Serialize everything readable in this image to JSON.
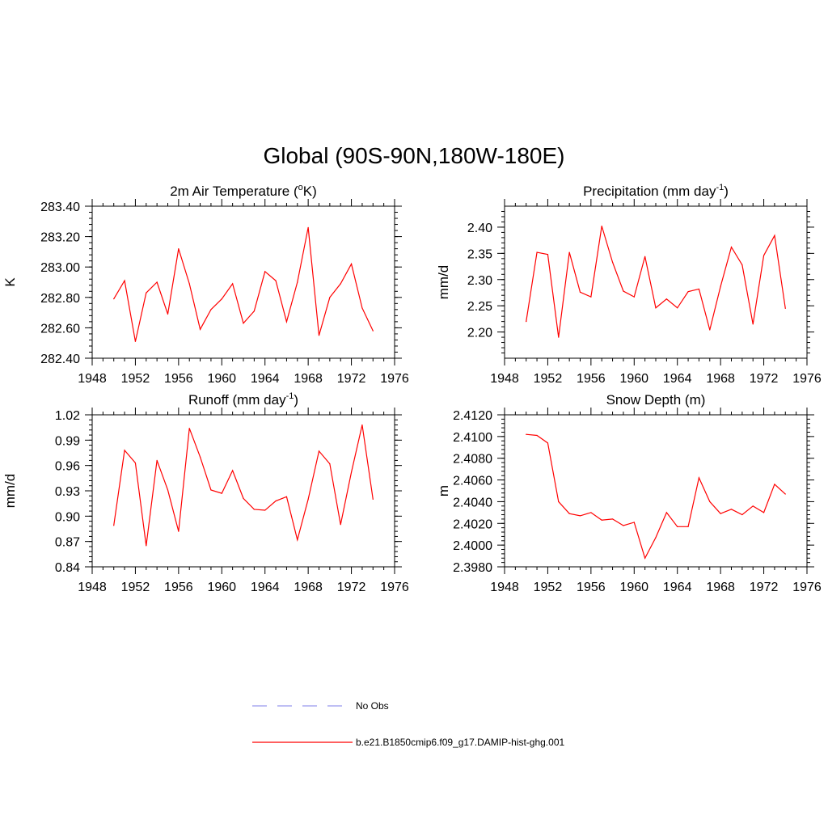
{
  "figure": {
    "title": "Global (90S-90N,180W-180E)",
    "colors": {
      "series": "#ff0000",
      "obs": "#9999ee",
      "axis": "#000000"
    }
  },
  "legend": {
    "entries": [
      {
        "label": "No Obs",
        "style": "dashed",
        "color": "#9999ee"
      },
      {
        "label": "b.e21.B1850cmip6.f09_g17.DAMIP-hist-ghg.001",
        "style": "solid",
        "color": "#ff0000"
      }
    ]
  },
  "chart_data": [
    {
      "type": "line",
      "title": "2m Air Temperature (",
      "title_sup": "o",
      "title_end": "K)",
      "ylabel": "K",
      "xlim": [
        1948,
        1976
      ],
      "ylim": [
        282.4,
        283.4
      ],
      "xticks": [
        "1948",
        "1952",
        "1956",
        "1960",
        "1964",
        "1968",
        "1972",
        "1976"
      ],
      "yticks": [
        282.4,
        282.6,
        282.8,
        283.0,
        283.2,
        283.4
      ],
      "ytick_labels": [
        "282.40",
        "282.60",
        "282.80",
        "283.00",
        "283.20",
        "283.40"
      ],
      "y_minor_step": 0.04,
      "x": [
        1950,
        1951,
        1952,
        1953,
        1954,
        1955,
        1956,
        1957,
        1958,
        1959,
        1960,
        1961,
        1962,
        1963,
        1964,
        1965,
        1966,
        1967,
        1968,
        1969,
        1970,
        1971,
        1972,
        1973,
        1974
      ],
      "values": [
        282.79,
        282.91,
        282.51,
        282.83,
        282.9,
        282.69,
        283.12,
        282.89,
        282.59,
        282.72,
        282.79,
        282.89,
        282.63,
        282.71,
        282.97,
        282.91,
        282.64,
        282.9,
        283.26,
        282.55,
        282.8,
        282.89,
        283.02,
        282.73,
        282.58
      ]
    },
    {
      "type": "line",
      "title": "Precipitation (mm day",
      "title_sup": "-1",
      "title_end": ")",
      "ylabel": "mm/d",
      "xlim": [
        1948,
        1976
      ],
      "ylim": [
        2.15,
        2.44
      ],
      "xticks": [
        "1948",
        "1952",
        "1956",
        "1960",
        "1964",
        "1968",
        "1972",
        "1976"
      ],
      "yticks": [
        2.2,
        2.25,
        2.3,
        2.35,
        2.4
      ],
      "ytick_labels": [
        "2.20",
        "2.25",
        "2.30",
        "2.35",
        "2.40"
      ],
      "y_minor_step": 0.01,
      "x": [
        1950,
        1951,
        1952,
        1953,
        1954,
        1955,
        1956,
        1957,
        1958,
        1959,
        1960,
        1961,
        1962,
        1963,
        1964,
        1965,
        1966,
        1967,
        1968,
        1969,
        1970,
        1971,
        1972,
        1973,
        1974
      ],
      "values": [
        2.22,
        2.352,
        2.348,
        2.19,
        2.352,
        2.276,
        2.267,
        2.402,
        2.333,
        2.278,
        2.267,
        2.344,
        2.246,
        2.263,
        2.246,
        2.277,
        2.282,
        2.204,
        2.287,
        2.362,
        2.328,
        2.215,
        2.346,
        2.384,
        2.245
      ]
    },
    {
      "type": "line",
      "title": "Runoff (mm day",
      "title_sup": "-1",
      "title_end": ")",
      "ylabel": "mm/d",
      "xlim": [
        1948,
        1976
      ],
      "ylim": [
        0.84,
        1.02
      ],
      "xticks": [
        "1948",
        "1952",
        "1956",
        "1960",
        "1964",
        "1968",
        "1972",
        "1976"
      ],
      "yticks": [
        0.84,
        0.87,
        0.9,
        0.93,
        0.96,
        0.99,
        1.02
      ],
      "ytick_labels": [
        "0.84",
        "0.87",
        "0.90",
        "0.93",
        "0.96",
        "0.99",
        "1.02"
      ],
      "y_minor_step": 0.006,
      "x": [
        1950,
        1951,
        1952,
        1953,
        1954,
        1955,
        1956,
        1957,
        1958,
        1959,
        1960,
        1961,
        1962,
        1963,
        1964,
        1965,
        1966,
        1967,
        1968,
        1969,
        1970,
        1971,
        1972,
        1973,
        1974
      ],
      "values": [
        0.889,
        0.978,
        0.963,
        0.865,
        0.966,
        0.931,
        0.882,
        1.004,
        0.97,
        0.931,
        0.927,
        0.954,
        0.921,
        0.908,
        0.907,
        0.918,
        0.923,
        0.872,
        0.92,
        0.977,
        0.962,
        0.89,
        0.952,
        1.008,
        0.92
      ]
    },
    {
      "type": "line",
      "title": "Snow Depth (m)",
      "title_sup": "",
      "title_end": "",
      "ylabel": "m",
      "xlim": [
        1948,
        1976
      ],
      "ylim": [
        2.398,
        2.412
      ],
      "xticks": [
        "1948",
        "1952",
        "1956",
        "1960",
        "1964",
        "1968",
        "1972",
        "1976"
      ],
      "yticks": [
        2.398,
        2.4,
        2.402,
        2.404,
        2.406,
        2.408,
        2.41,
        2.412
      ],
      "ytick_labels": [
        "2.3980",
        "2.4000",
        "2.4020",
        "2.4040",
        "2.4060",
        "2.4080",
        "2.4100",
        "2.4120"
      ],
      "y_minor_step": 0.0004,
      "x": [
        1950,
        1951,
        1952,
        1953,
        1954,
        1955,
        1956,
        1957,
        1958,
        1959,
        1960,
        1961,
        1962,
        1963,
        1964,
        1965,
        1966,
        1967,
        1968,
        1969,
        1970,
        1971,
        1972,
        1973,
        1974
      ],
      "values": [
        2.4102,
        2.4101,
        2.4094,
        2.404,
        2.4029,
        2.4027,
        2.403,
        2.4023,
        2.4024,
        2.4018,
        2.4021,
        2.3988,
        2.4007,
        2.403,
        2.4017,
        2.4017,
        2.4062,
        2.404,
        2.4029,
        2.4033,
        2.4028,
        2.4036,
        2.403,
        2.4056,
        2.4047
      ]
    }
  ]
}
